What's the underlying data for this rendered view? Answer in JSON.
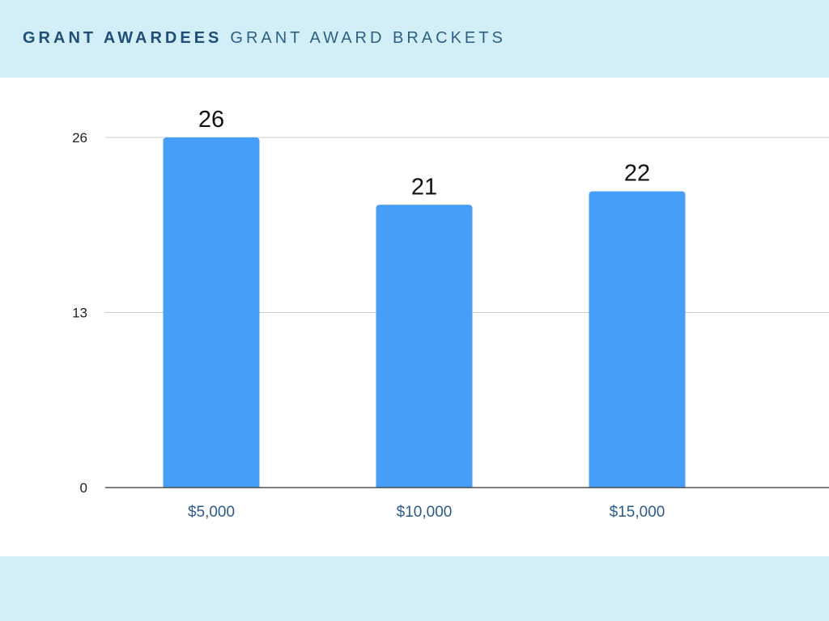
{
  "header": {
    "title_bold": "GRANT AWARDEES",
    "title_light": "GRANT AWARD BRACKETS"
  },
  "colors": {
    "header_background": "#d2eff7",
    "title_bold": "#1f4e79",
    "title_light": "#2c5f86",
    "bar": "#479ef8",
    "axis_text": "#2d5b8a",
    "grid": "#cccccc"
  },
  "chart_data": {
    "type": "bar",
    "categories": [
      "$5,000",
      "$10,000",
      "$15,000"
    ],
    "values": [
      26,
      21,
      22
    ],
    "y_ticks": [
      0,
      13,
      26
    ],
    "ylim": [
      0,
      26
    ],
    "grid": true,
    "data_labels": true,
    "legend": "none"
  }
}
